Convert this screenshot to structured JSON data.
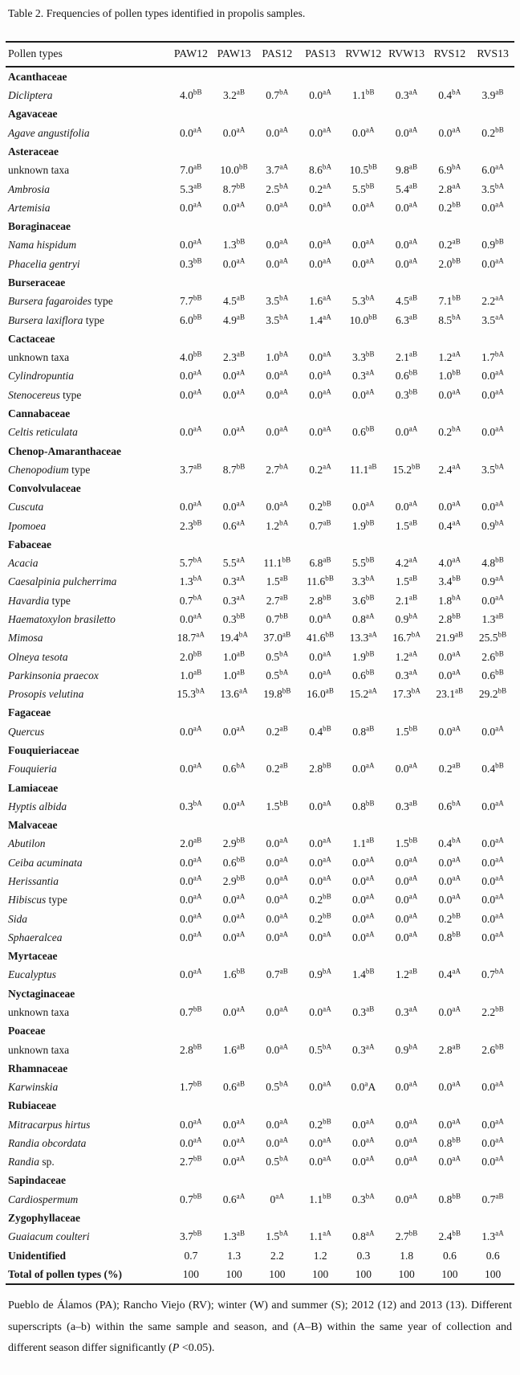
{
  "title": "Table 2. Frequencies of pollen types identified in propolis samples.",
  "table": {
    "header": [
      "Pollen types",
      "PAW12",
      "PAW13",
      "PAS12",
      "PAS13",
      "RVW12",
      "RVW13",
      "RVS12",
      "RVS13"
    ],
    "rows": [
      {
        "type": "family",
        "label": "Acanthaceae"
      },
      {
        "type": "species",
        "italic": "Dicliptera",
        "suffix": "",
        "values": [
          "4.0^bB",
          "3.2^aB",
          "0.7^bA",
          "0.0^aA",
          "1.1^bB",
          "0.3^aA",
          "0.4^bA",
          "3.9^aB"
        ]
      },
      {
        "type": "family",
        "label": "Agavaceae"
      },
      {
        "type": "species",
        "italic": "Agave angustifolia",
        "suffix": "",
        "values": [
          "0.0^aA",
          "0.0^aA",
          "0.0^aA",
          "0.0^aA",
          "0.0^aA",
          "0.0^aA",
          "0.0^aA",
          "0.2^bB"
        ]
      },
      {
        "type": "family",
        "label": "Asteraceae"
      },
      {
        "type": "plain",
        "label": "unknown taxa",
        "values": [
          "7.0^aB",
          "10.0^bB",
          "3.7^aA",
          "8.6^bA",
          "10.5^bB",
          "9.8^aB",
          "6.9^bA",
          "6.0^aA"
        ]
      },
      {
        "type": "species",
        "italic": "Ambrosia",
        "suffix": "",
        "values": [
          "5.3^aB",
          "8.7^bB",
          "2.5^bA",
          "0.2^aA",
          "5.5^bB",
          "5.4^aB",
          "2.8^aA",
          "3.5^bA"
        ]
      },
      {
        "type": "species",
        "italic": "Artemisia",
        "suffix": "",
        "values": [
          "0.0^aA",
          "0.0^aA",
          "0.0^aA",
          "0.0^aA",
          "0.0^aA",
          "0.0^aA",
          "0.2^bB",
          "0.0^aA"
        ]
      },
      {
        "type": "family",
        "label": "Boraginaceae"
      },
      {
        "type": "species",
        "italic": "Nama hispidum",
        "suffix": "",
        "values": [
          "0.0^aA",
          "1.3^bB",
          "0.0^aA",
          "0.0^aA",
          "0.0^aA",
          "0.0^aA",
          "0.2^aB",
          "0.9^bB"
        ]
      },
      {
        "type": "species",
        "italic": "Phacelia gentryi",
        "suffix": "",
        "values": [
          "0.3^bB",
          "0.0^aA",
          "0.0^aA",
          "0.0^aA",
          "0.0^aA",
          "0.0^aA",
          "2.0^bB",
          "0.0^aA"
        ]
      },
      {
        "type": "family",
        "label": "Burseraceae"
      },
      {
        "type": "species",
        "italic": "Bursera fagaroides",
        "suffix": " type",
        "values": [
          "7.7^bB",
          "4.5^aB",
          "3.5^bA",
          "1.6^aA",
          "5.3^bA",
          "4.5^aB",
          "7.1^bB",
          "2.2^aA"
        ]
      },
      {
        "type": "species",
        "italic": "Bursera laxiflora",
        "suffix": " type",
        "values": [
          "6.0^bB",
          "4.9^aB",
          "3.5^bA",
          "1.4^aA",
          "10.0^bB",
          "6.3^aB",
          "8.5^bA",
          "3.5^aA"
        ]
      },
      {
        "type": "family",
        "label": "Cactaceae"
      },
      {
        "type": "plain",
        "label": "unknown taxa",
        "values": [
          "4.0^bB",
          "2.3^aB",
          "1.0^bA",
          "0.0^aA",
          "3.3^bB",
          "2.1^aB",
          "1.2^aA",
          "1.7^bA"
        ]
      },
      {
        "type": "species",
        "italic": "Cylindropuntia",
        "suffix": "",
        "values": [
          "0.0^aA",
          "0.0^aA",
          "0.0^aA",
          "0.0^aA",
          "0.3^aA",
          "0.6^bB",
          "1.0^bB",
          "0.0^aA"
        ]
      },
      {
        "type": "species",
        "italic": "Stenocereus",
        "suffix": " type",
        "values": [
          "0.0^aA",
          "0.0^aA",
          "0.0^aA",
          "0.0^aA",
          "0.0^aA",
          "0.3^bB",
          "0.0^aA",
          "0.0^aA"
        ]
      },
      {
        "type": "family",
        "label": "Cannabaceae"
      },
      {
        "type": "species",
        "italic": "Celtis reticulata",
        "suffix": "",
        "values": [
          "0.0^aA",
          "0.0^aA",
          "0.0^aA",
          "0.0^aA",
          "0.6^bB",
          "0.0^aA",
          "0.2^bA",
          "0.0^aA"
        ]
      },
      {
        "type": "family",
        "label": "Chenop-Amaranthaceae"
      },
      {
        "type": "species",
        "italic": "Chenopodium",
        "suffix": " type",
        "values": [
          "3.7^aB",
          "8.7^bB",
          "2.7^bA",
          "0.2^aA",
          "11.1^aB",
          "15.2^bB",
          "2.4^aA",
          "3.5^bA"
        ]
      },
      {
        "type": "family",
        "label": "Convolvulaceae"
      },
      {
        "type": "species",
        "italic": "Cuscuta",
        "suffix": "",
        "values": [
          "0.0^aA",
          "0.0^aA",
          "0.0^aA",
          "0.2^bB",
          "0.0^aA",
          "0.0^aA",
          "0.0^aA",
          "0.0^aA"
        ]
      },
      {
        "type": "species",
        "italic": "Ipomoea",
        "suffix": "",
        "values": [
          "2.3^bB",
          "0.6^aA",
          "1.2^bA",
          "0.7^aB",
          "1.9^bB",
          "1.5^aB",
          "0.4^aA",
          "0.9^bA"
        ]
      },
      {
        "type": "family",
        "label": "Fabaceae"
      },
      {
        "type": "species",
        "italic": "Acacia",
        "suffix": "",
        "values": [
          "5.7^bA",
          "5.5^aA",
          "11.1^bB",
          "6.8^aB",
          "5.5^bB",
          "4.2^aA",
          "4.0^aA",
          "4.8^bB"
        ]
      },
      {
        "type": "species",
        "italic": "Caesalpinia pulcherrima",
        "suffix": "",
        "values": [
          "1.3^bA",
          "0.3^aA",
          "1.5^aB",
          "11.6^bB",
          "3.3^bA",
          "1.5^aB",
          "3.4^bB",
          "0.9^aA"
        ]
      },
      {
        "type": "species",
        "italic": "Havardia",
        "suffix": " type",
        "values": [
          "0.7^bA",
          "0.3^aA",
          "2.7^aB",
          "2.8^bB",
          "3.6^bB",
          "2.1^aB",
          "1.8^bA",
          "0.0^aA"
        ]
      },
      {
        "type": "species",
        "italic": "Haematoxylon brasiletto",
        "suffix": "",
        "values": [
          "0.0^aA",
          "0.3^bB",
          "0.7^bB",
          "0.0^aA",
          "0.8^aA",
          "0.9^bA",
          "2.8^bB",
          "1.3^aB"
        ]
      },
      {
        "type": "species",
        "italic": "Mimosa",
        "suffix": "",
        "values": [
          "18.7^aA",
          "19.4^bA",
          "37.0^aB",
          "41.6^bB",
          "13.3^aA",
          "16.7^bA",
          "21.9^aB",
          "25.5^bB"
        ]
      },
      {
        "type": "species",
        "italic": "Olneya tesota",
        "suffix": "",
        "values": [
          "2.0^bB",
          "1.0^aB",
          "0.5^bA",
          "0.0^aA",
          "1.9^bB",
          "1.2^aA",
          "0.0^aA",
          "2.6^bB"
        ]
      },
      {
        "type": "species",
        "italic": "Parkinsonia praecox",
        "suffix": "",
        "values": [
          "1.0^aB",
          "1.0^aB",
          "0.5^bA",
          "0.0^aA",
          "0.6^bB",
          "0.3^aA",
          "0.0^aA",
          "0.6^bB"
        ]
      },
      {
        "type": "species",
        "italic": "Prosopis velutina",
        "suffix": "",
        "values": [
          "15.3^bA",
          "13.6^aA",
          "19.8^bB",
          "16.0^aB",
          "15.2^aA",
          "17.3^bA",
          "23.1^aB",
          "29.2^bB"
        ]
      },
      {
        "type": "family",
        "label": "Fagaceae"
      },
      {
        "type": "species",
        "italic": "Quercus",
        "suffix": "",
        "values": [
          "0.0^aA",
          "0.0^aA",
          "0.2^aB",
          "0.4^bB",
          "0.8^aB",
          "1.5^bB",
          "0.0^aA",
          "0.0^aA"
        ]
      },
      {
        "type": "family",
        "label": "Fouquieriaceae"
      },
      {
        "type": "species",
        "italic": "Fouquieria",
        "suffix": "",
        "values": [
          "0.0^aA",
          "0.6^bA",
          "0.2^aB",
          "2.8^bB",
          "0.0^aA",
          "0.0^aA",
          "0.2^aB",
          "0.4^bB"
        ]
      },
      {
        "type": "family",
        "label": "Lamiaceae"
      },
      {
        "type": "species",
        "italic": "Hyptis albida",
        "suffix": "",
        "values": [
          "0.3^bA",
          "0.0^aA",
          "1.5^bB",
          "0.0^aA",
          "0.8^bB",
          "0.3^aB",
          "0.6^bA",
          "0.0^aA"
        ]
      },
      {
        "type": "family",
        "label": "Malvaceae"
      },
      {
        "type": "species",
        "italic": "Abutilon",
        "suffix": "",
        "values": [
          "2.0^aB",
          "2.9^bB",
          "0.0^aA",
          "0.0^aA",
          "1.1^aB",
          "1.5^bB",
          "0.4^bA",
          "0.0^aA"
        ]
      },
      {
        "type": "species",
        "italic": "Ceiba acuminata",
        "suffix": "",
        "values": [
          "0.0^aA",
          "0.6^bB",
          "0.0^aA",
          "0.0^aA",
          "0.0^aA",
          "0.0^aA",
          "0.0^aA",
          "0.0^aA"
        ]
      },
      {
        "type": "species",
        "italic": "Herissantia",
        "suffix": "",
        "values": [
          "0.0^aA",
          "2.9^bB",
          "0.0^aA",
          "0.0^aA",
          "0.0^aA",
          "0.0^aA",
          "0.0^aA",
          "0.0^aA"
        ]
      },
      {
        "type": "species",
        "italic": "Hibiscus",
        "suffix": " type",
        "values": [
          "0.0^aA",
          "0.0^aA",
          "0.0^aA",
          "0.2^bB",
          "0.0^aA",
          "0.0^aA",
          "0.0^aA",
          "0.0^aA"
        ]
      },
      {
        "type": "species",
        "italic": "Sida",
        "suffix": "",
        "values": [
          "0.0^aA",
          "0.0^aA",
          "0.0^aA",
          "0.2^bB",
          "0.0^aA",
          "0.0^aA",
          "0.2^bB",
          "0.0^aA"
        ]
      },
      {
        "type": "species",
        "italic": "Sphaeralcea",
        "suffix": "",
        "values": [
          "0.0^aA",
          "0.0^aA",
          "0.0^aA",
          "0.0^aA",
          "0.0^aA",
          "0.0^aA",
          "0.8^bB",
          "0.0^aA"
        ]
      },
      {
        "type": "family",
        "label": "Myrtaceae"
      },
      {
        "type": "species",
        "italic": "Eucalyptus",
        "suffix": "",
        "values": [
          "0.0^aA",
          "1.6^bB",
          "0.7^aB",
          "0.9^bA",
          "1.4^bB",
          "1.2^aB",
          "0.4^aA",
          "0.7^bA"
        ]
      },
      {
        "type": "family",
        "label": "Nyctaginaceae"
      },
      {
        "type": "plain",
        "label": "unknown taxa",
        "values": [
          "0.7^bB",
          "0.0^aA",
          "0.0^aA",
          "0.0^aA",
          "0.3^aB",
          "0.3^aA",
          "0.0^aA",
          "2.2^bB"
        ]
      },
      {
        "type": "family",
        "label": "Poaceae"
      },
      {
        "type": "plain",
        "label": "unknown taxa",
        "values": [
          "2.8^bB",
          "1.6^aB",
          "0.0^aA",
          "0.5^bA",
          "0.3^aA",
          "0.9^bA",
          "2.8^aB",
          "2.6^bB"
        ]
      },
      {
        "type": "family",
        "label": "Rhamnaceae"
      },
      {
        "type": "species",
        "italic": "Karwinskia",
        "suffix": "",
        "values": [
          "1.7^bB",
          "0.6^aB",
          "0.5^bA",
          "0.0^aA",
          "0.0^a|A",
          "0.0^aA",
          "0.0^aA",
          "0.0^aA"
        ]
      },
      {
        "type": "family",
        "label": "Rubiaceae"
      },
      {
        "type": "species",
        "italic": "Mitracarpus hirtus",
        "suffix": "",
        "values": [
          "0.0^aA",
          "0.0^aA",
          "0.0^aA",
          "0.2^bB",
          "0.0^aA",
          "0.0^aA",
          "0.0^aA",
          "0.0^aA"
        ]
      },
      {
        "type": "species",
        "italic": "Randia obcordata",
        "suffix": "",
        "values": [
          "0.0^aA",
          "0.0^aA",
          "0.0^aA",
          "0.0^aA",
          "0.0^aA",
          "0.0^aA",
          "0.8^bB",
          "0.0^aA"
        ]
      },
      {
        "type": "species",
        "italic": "Randia",
        "suffix": " sp.",
        "values": [
          "2.7^bB",
          "0.0^aA",
          "0.5^bA",
          "0.0^aA",
          "0.0^aA",
          "0.0^aA",
          "0.0^aA",
          "0.0^aA"
        ]
      },
      {
        "type": "family",
        "label": "Sapindaceae"
      },
      {
        "type": "species",
        "italic": "Cardiospermum",
        "suffix": "",
        "values": [
          "0.7^bB",
          "0.6^aA",
          "0^aA",
          "1.1^bB",
          "0.3^bA",
          "0.0^aA",
          "0.8^bB",
          "0.7^aB"
        ]
      },
      {
        "type": "family",
        "label": "Zygophyllaceae"
      },
      {
        "type": "species",
        "italic": "Guaiacum coulteri",
        "suffix": "",
        "values": [
          "3.7^bB",
          "1.3^aB",
          "1.5^bA",
          "1.1^aA",
          "0.8^aA",
          "2.7^bB",
          "2.4^bB",
          "1.3^aA"
        ]
      },
      {
        "type": "bold",
        "label": "Unidentified",
        "values": [
          "0.7",
          "1.3",
          "2.2",
          "1.2",
          "0.3",
          "1.8",
          "0.6",
          "0.6"
        ]
      },
      {
        "type": "bold",
        "label": "Total of pollen types (%)",
        "values": [
          "100",
          "100",
          "100",
          "100",
          "100",
          "100",
          "100",
          "100"
        ]
      }
    ]
  },
  "footnote": {
    "pre": "Pueblo de Álamos (PA); Rancho Viejo (RV); winter (W) and summer (S); 2012 (12) and 2013 (13). Different superscripts (a–b) within the same sample and season, and (A–B) within the same year of collection and different season differ significantly (",
    "p": "P",
    "post": " <0.05)."
  }
}
